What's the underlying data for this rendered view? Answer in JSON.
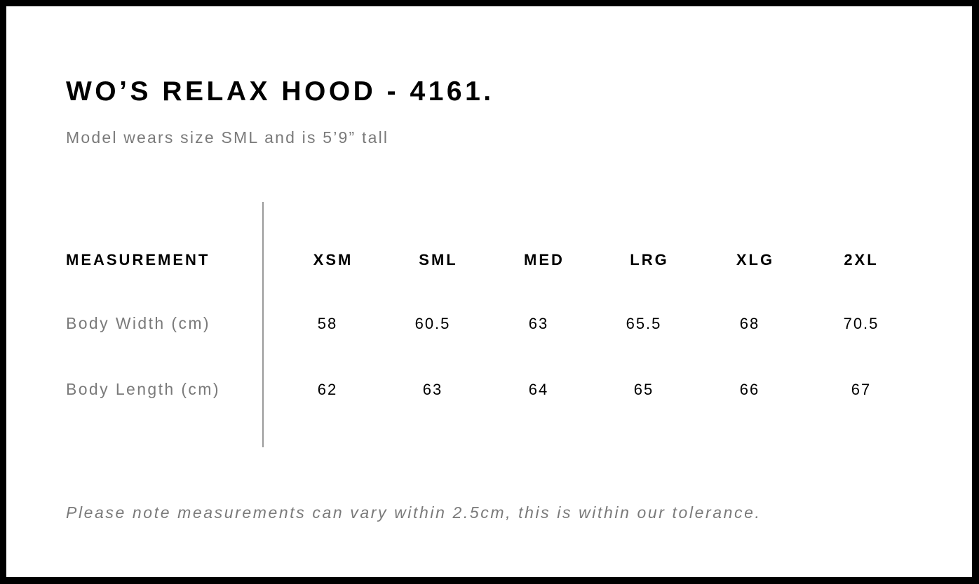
{
  "title": "WO’S RELAX HOOD - 4161.",
  "subtitle": "Model wears size SML and is 5’9” tall",
  "table": {
    "header": "MEASUREMENT",
    "sizes": [
      "XSM",
      "SML",
      "MED",
      "LRG",
      "XLG",
      "2XL"
    ],
    "rows": [
      {
        "label": "Body Width (cm)",
        "values": [
          "58",
          "60.5",
          "63",
          "65.5",
          "68",
          "70.5"
        ]
      },
      {
        "label": "Body Length (cm)",
        "values": [
          "62",
          "63",
          "64",
          "65",
          "66",
          "67"
        ]
      }
    ]
  },
  "note": "Please note measurements can vary within 2.5cm, this is within our tolerance."
}
